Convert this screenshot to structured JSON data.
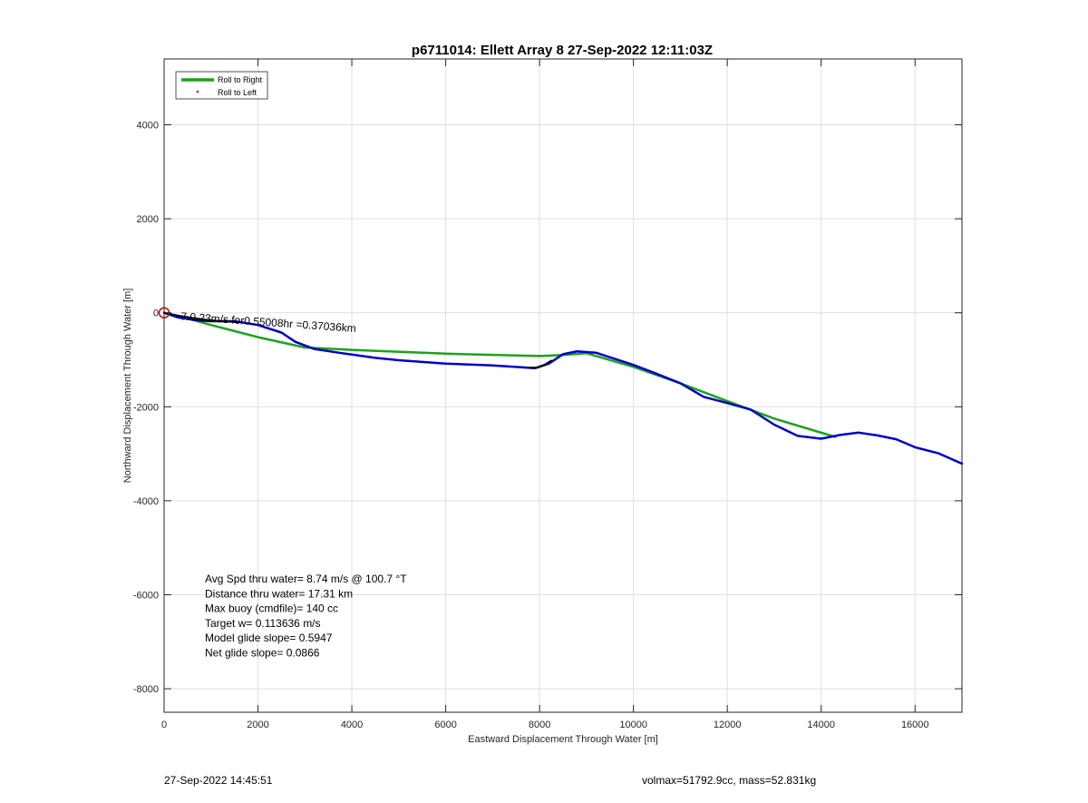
{
  "chart_data": {
    "type": "line",
    "title": "p6711014: Ellett Array 8 27-Sep-2022 12:11:03Z",
    "xlabel": "Eastward Displacement Through Water [m]",
    "ylabel": "Northward Displacement Through Water [m]",
    "xlim": [
      0,
      17000
    ],
    "ylim": [
      -8500,
      5400
    ],
    "xticks": [
      0,
      2000,
      4000,
      6000,
      8000,
      10000,
      12000,
      14000,
      16000
    ],
    "yticks": [
      -8000,
      -6000,
      -4000,
      -2000,
      0,
      2000,
      4000
    ],
    "grid": true,
    "legend": {
      "placement": "top-left",
      "entries": [
        {
          "label": "Roll to Right",
          "color": "#1aa31a",
          "style": "line"
        },
        {
          "label": "Roll to Left",
          "color": "#ff0000",
          "style": "dot"
        }
      ]
    },
    "series": [
      {
        "color": "#1aa31a",
        "x": [
          0,
          500,
          1000,
          2000,
          3000,
          4000,
          6000,
          8000,
          8500,
          9000,
          10000,
          11000,
          12000,
          13000,
          14300
        ],
        "y": [
          0,
          -120,
          -260,
          -520,
          -740,
          -790,
          -870,
          -920,
          -900,
          -860,
          -1150,
          -1500,
          -1880,
          -2250,
          -2640
        ]
      },
      {
        "color": "#0000cc",
        "x": [
          0,
          300,
          700,
          1000,
          1500,
          2000,
          2500,
          2800,
          3200,
          3800,
          4500,
          5000,
          6000,
          7000,
          7900,
          8200,
          8500,
          8800,
          9200,
          10000,
          10500,
          11000,
          11500,
          12000,
          12500,
          13000,
          13500,
          14000,
          14400,
          14800,
          15200,
          15600,
          16000,
          16500,
          17000
        ],
        "y": [
          0,
          -100,
          -160,
          -180,
          -180,
          -260,
          -420,
          -620,
          -770,
          -860,
          -960,
          -1010,
          -1080,
          -1120,
          -1180,
          -1080,
          -880,
          -820,
          -850,
          -1110,
          -1300,
          -1500,
          -1790,
          -1920,
          -2060,
          -2380,
          -2620,
          -2680,
          -2600,
          -2550,
          -2610,
          -2690,
          -2860,
          -2990,
          -3210
        ]
      },
      {
        "color": "#000000",
        "x": [
          0,
          300,
          600,
          900,
          1200,
          1600
        ],
        "y": [
          0,
          -60,
          -110,
          -150,
          -180,
          -200
        ]
      },
      {
        "color": "#000000",
        "x": [
          7800,
          7950,
          8100,
          8250
        ],
        "y": [
          -1170,
          -1170,
          -1110,
          -1020
        ]
      }
    ],
    "annotations": {
      "overlap_label": "7.0.23m/s for0.55008hr =0.37036km",
      "overlap_label_x": 350,
      "overlap_label_y": -150,
      "start_marker_x": 0,
      "start_marker_y": 0,
      "stats": [
        "Avg Spd thru water=  8.74 m/s @ 100.7 °T",
        "Distance thru water= 17.31 km",
        "Max buoy (cmdfile)= 140 cc",
        "Target w= 0.113636 m/s",
        "Model glide slope= 0.5947",
        "Net glide slope= 0.0866"
      ]
    }
  },
  "footer": {
    "left": "27-Sep-2022 14:45:51",
    "right": "volmax=51792.9cc, mass=52.831kg"
  }
}
